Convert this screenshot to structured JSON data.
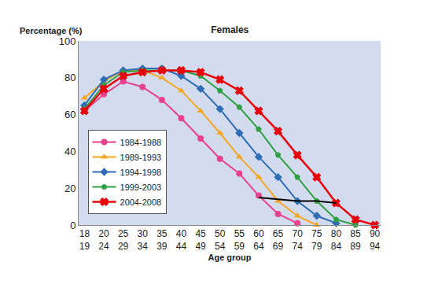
{
  "chart_data": {
    "type": "line",
    "title": "Females",
    "y_label": "Percentage (%)",
    "x_label": "Age group",
    "categories": [
      "18\n19",
      "20\n24",
      "25\n29",
      "30\n34",
      "35\n39",
      "40\n44",
      "45\n49",
      "50\n54",
      "55\n59",
      "60\n64",
      "65\n69",
      "70\n74",
      "75\n79",
      "80\n84",
      "85\n89",
      "90\n94"
    ],
    "series": [
      {
        "name": "1984-1988",
        "color": "#e8428c",
        "marker": "circle",
        "line_style": "solid",
        "values": [
          62,
          71,
          78,
          75,
          68,
          58,
          47,
          36,
          28,
          16,
          6,
          1,
          null,
          null,
          null,
          null
        ]
      },
      {
        "name": "1989-1993",
        "color": "#f5a623",
        "marker": "triangle-up",
        "line_style": "solid",
        "values": [
          69,
          78,
          84,
          84,
          80,
          73,
          62,
          50,
          37,
          26,
          13,
          5,
          0,
          null,
          null,
          null
        ]
      },
      {
        "name": "1994-1998",
        "color": "#2e6db4",
        "marker": "diamond",
        "line_style": "solid",
        "values": [
          65,
          79,
          84,
          85,
          85,
          81,
          74,
          63,
          50,
          37,
          26,
          13,
          5,
          1,
          null,
          null
        ]
      },
      {
        "name": "1999-2003",
        "color": "#2ea043",
        "marker": "pentagon",
        "line_style": "solid",
        "values": [
          63,
          76,
          83,
          84,
          84,
          84,
          81,
          73,
          64,
          52,
          38,
          26,
          13,
          3,
          0,
          null
        ]
      },
      {
        "name": "2004-2008",
        "color": "#e8000b",
        "marker": "x",
        "line_style": "solid",
        "values": [
          62,
          74,
          81,
          83,
          84,
          84,
          83,
          79,
          73,
          62,
          51,
          38,
          26,
          12,
          3,
          0
        ]
      },
      {
        "color": "#000000",
        "line_style": "solid",
        "values": [
          null,
          null,
          null,
          null,
          null,
          null,
          null,
          null,
          null,
          15,
          14,
          13,
          13,
          12,
          null,
          null
        ]
      }
    ],
    "ylim": [
      0,
      100
    ],
    "yticks": [
      0,
      20,
      40,
      60,
      80,
      100
    ],
    "grid": false,
    "legend": "lower left"
  }
}
